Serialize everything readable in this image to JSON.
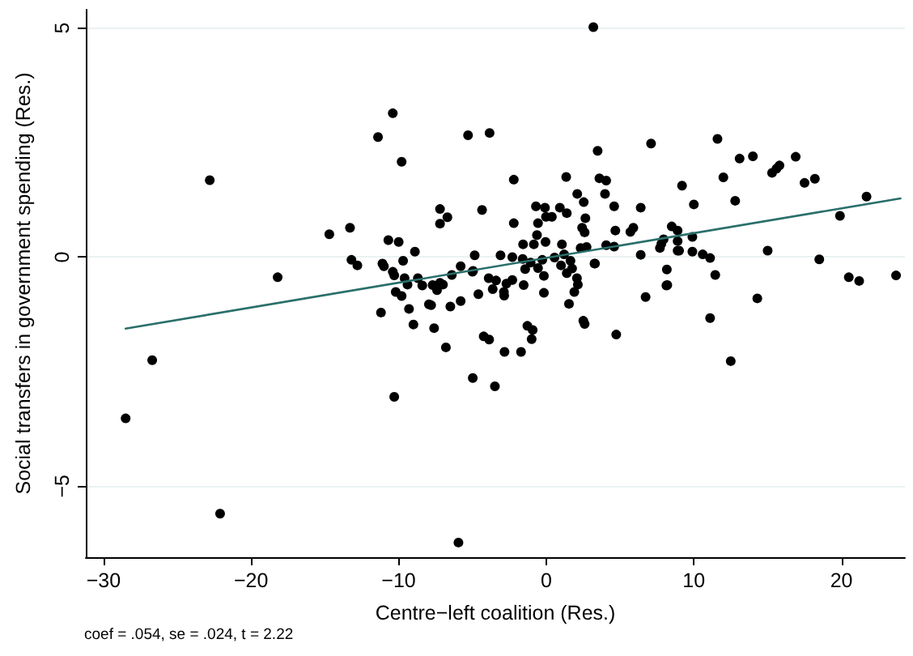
{
  "chart_data": {
    "type": "scatter",
    "xlabel": "Centre−left coalition (Res.)",
    "ylabel": "Social transfers in government spending (Res.)",
    "annotations": [
      "coef = .054, se = .024, t = 2.22"
    ],
    "xlim": [
      -31.2,
      24.3
    ],
    "ylim": [
      -6.55,
      5.4
    ],
    "xticks": [
      {
        "value": -30,
        "label": "−30"
      },
      {
        "value": -20,
        "label": "−20"
      },
      {
        "value": -10,
        "label": "−10"
      },
      0,
      10,
      20
    ],
    "yticks": [
      {
        "value": -5,
        "label": "−5"
      },
      0,
      5
    ],
    "grid": "y",
    "marker": "circle",
    "series": [
      {
        "type": "scatter",
        "color": "#000000",
        "x": [
          -22.8,
          -18.2,
          -14.7,
          -13.3,
          -11.4,
          -10.4,
          -9.8,
          -13.2,
          -12.8,
          -11.1,
          -11.0,
          -10.7,
          -10.0,
          -9.7,
          -8.9,
          -10.4,
          -10.3,
          -7.2,
          -6.7,
          -7.2,
          -5.3,
          -6.4,
          -5.8,
          -9.6,
          -8.7,
          -7.7,
          -7.2,
          3.19,
          -3.84,
          3.48,
          7.1,
          11.6,
          13.1,
          14.0,
          16.9,
          15.3,
          15.6,
          15.8,
          17.5,
          18.2,
          21.7,
          19.9,
          12.0,
          12.8,
          9.2,
          10.0,
          -2.2,
          -4.35,
          -2.2,
          1.35,
          2.1,
          2.54,
          3.6,
          4.06,
          3.98,
          4.6,
          6.4,
          -0.7,
          -0.09,
          0.92,
          1.39,
          -0.02,
          0.38,
          -0.56,
          2.65,
          2.43,
          2.6,
          -0.63,
          -1.57,
          -0.84,
          -0.05,
          1.06,
          2.33,
          2.73,
          4.68,
          4.06,
          4.6,
          5.7,
          5.9,
          8.5,
          8.9,
          9.9,
          7.8,
          7.95,
          8.9,
          8.9,
          9.0,
          9.9,
          7.7,
          10.6,
          11.1,
          15.0,
          18.5,
          6.4,
          -4.85,
          -3.1,
          -2.3,
          -1.6,
          -1.06,
          -0.27,
          0.56,
          1.21,
          1.64,
          1.0,
          1.75,
          3.27,
          1.39,
          8.17,
          11.45,
          -4.96,
          -3.9,
          -3.4,
          -2.3,
          -1.43,
          -0.56,
          -0.16,
          2.08,
          20.5,
          21.2,
          8.2,
          -2.7,
          23.7,
          -5.0,
          -5.8,
          -4.6,
          -3.63,
          -2.87,
          -2.85,
          -1.53,
          -0.16,
          1.54,
          1.9,
          2.14,
          -4.24,
          -3.87,
          -1.28,
          -0.92,
          -0.99,
          -2.83,
          -1.71,
          2.51,
          2.6,
          4.74,
          -4.98,
          -3.48,
          -5.95,
          6.73,
          8.14,
          11.1,
          12.5,
          14.3,
          3.3,
          -26.7,
          -28.5,
          -22.1,
          -11.2,
          -10.3,
          -9.3,
          -9.0,
          -7.6,
          -6.8,
          -7.95,
          -7.8,
          -6.5,
          -10.2,
          -9.8,
          -8.4,
          -7.4,
          -7.0,
          -9.4
        ],
        "values": [
          1.68,
          -0.44,
          0.5,
          0.64,
          2.62,
          3.14,
          2.08,
          -0.06,
          -0.18,
          -0.14,
          -0.2,
          0.37,
          0.33,
          -0.08,
          0.12,
          -0.32,
          -0.4,
          1.05,
          0.87,
          0.73,
          2.66,
          -0.39,
          -0.2,
          -0.46,
          -0.46,
          -0.61,
          -0.56,
          5.02,
          2.71,
          2.32,
          2.48,
          2.58,
          2.15,
          2.2,
          2.19,
          1.84,
          1.93,
          2.0,
          1.62,
          1.71,
          1.32,
          0.9,
          1.74,
          1.23,
          1.56,
          1.15,
          1.69,
          1.03,
          0.74,
          1.75,
          1.38,
          1.2,
          1.72,
          1.67,
          1.38,
          1.11,
          1.08,
          1.11,
          1.08,
          1.08,
          0.96,
          0.88,
          0.88,
          0.74,
          0.85,
          0.64,
          0.54,
          0.48,
          0.28,
          0.28,
          0.33,
          0.28,
          0.2,
          0.22,
          0.58,
          0.26,
          0.23,
          0.55,
          0.64,
          0.67,
          0.58,
          0.44,
          0.29,
          0.39,
          0.35,
          0.14,
          0.14,
          0.12,
          0.2,
          0.06,
          -0.02,
          0.14,
          -0.05,
          0.05,
          0.04,
          0.04,
          0,
          -0.04,
          -0.12,
          -0.06,
          -0.01,
          0.06,
          -0.08,
          -0.18,
          -0.25,
          -0.14,
          -0.35,
          -0.27,
          -0.39,
          -0.3,
          -0.46,
          -0.51,
          -0.5,
          -0.26,
          -0.24,
          -0.41,
          -0.46,
          -0.44,
          -0.52,
          -0.61,
          -0.58,
          -0.4,
          -0.32,
          -0.96,
          -0.81,
          -0.7,
          -0.76,
          -0.84,
          -0.61,
          -0.78,
          -1.02,
          -0.76,
          -0.6,
          -1.73,
          -1.8,
          -1.5,
          -1.59,
          -1.79,
          -2.07,
          -2.07,
          -1.39,
          -1.46,
          -1.69,
          -2.64,
          -2.82,
          -6.23,
          -0.87,
          -0.62,
          -1.33,
          -2.27,
          -0.9,
          -0.14,
          -2.25,
          -3.52,
          -5.6,
          -1.21,
          -3.05,
          -1.13,
          -1.47,
          -1.55,
          -1.97,
          -1.03,
          -1.05,
          -1.08,
          -0.76,
          -0.85,
          -0.62,
          -0.72,
          -0.6,
          -0.6
        ]
      },
      {
        "type": "line",
        "color": "#2a6f6a",
        "x": [
          -28.5,
          24
        ],
        "values": [
          -1.56,
          1.28
        ],
        "marker": "none"
      }
    ]
  }
}
